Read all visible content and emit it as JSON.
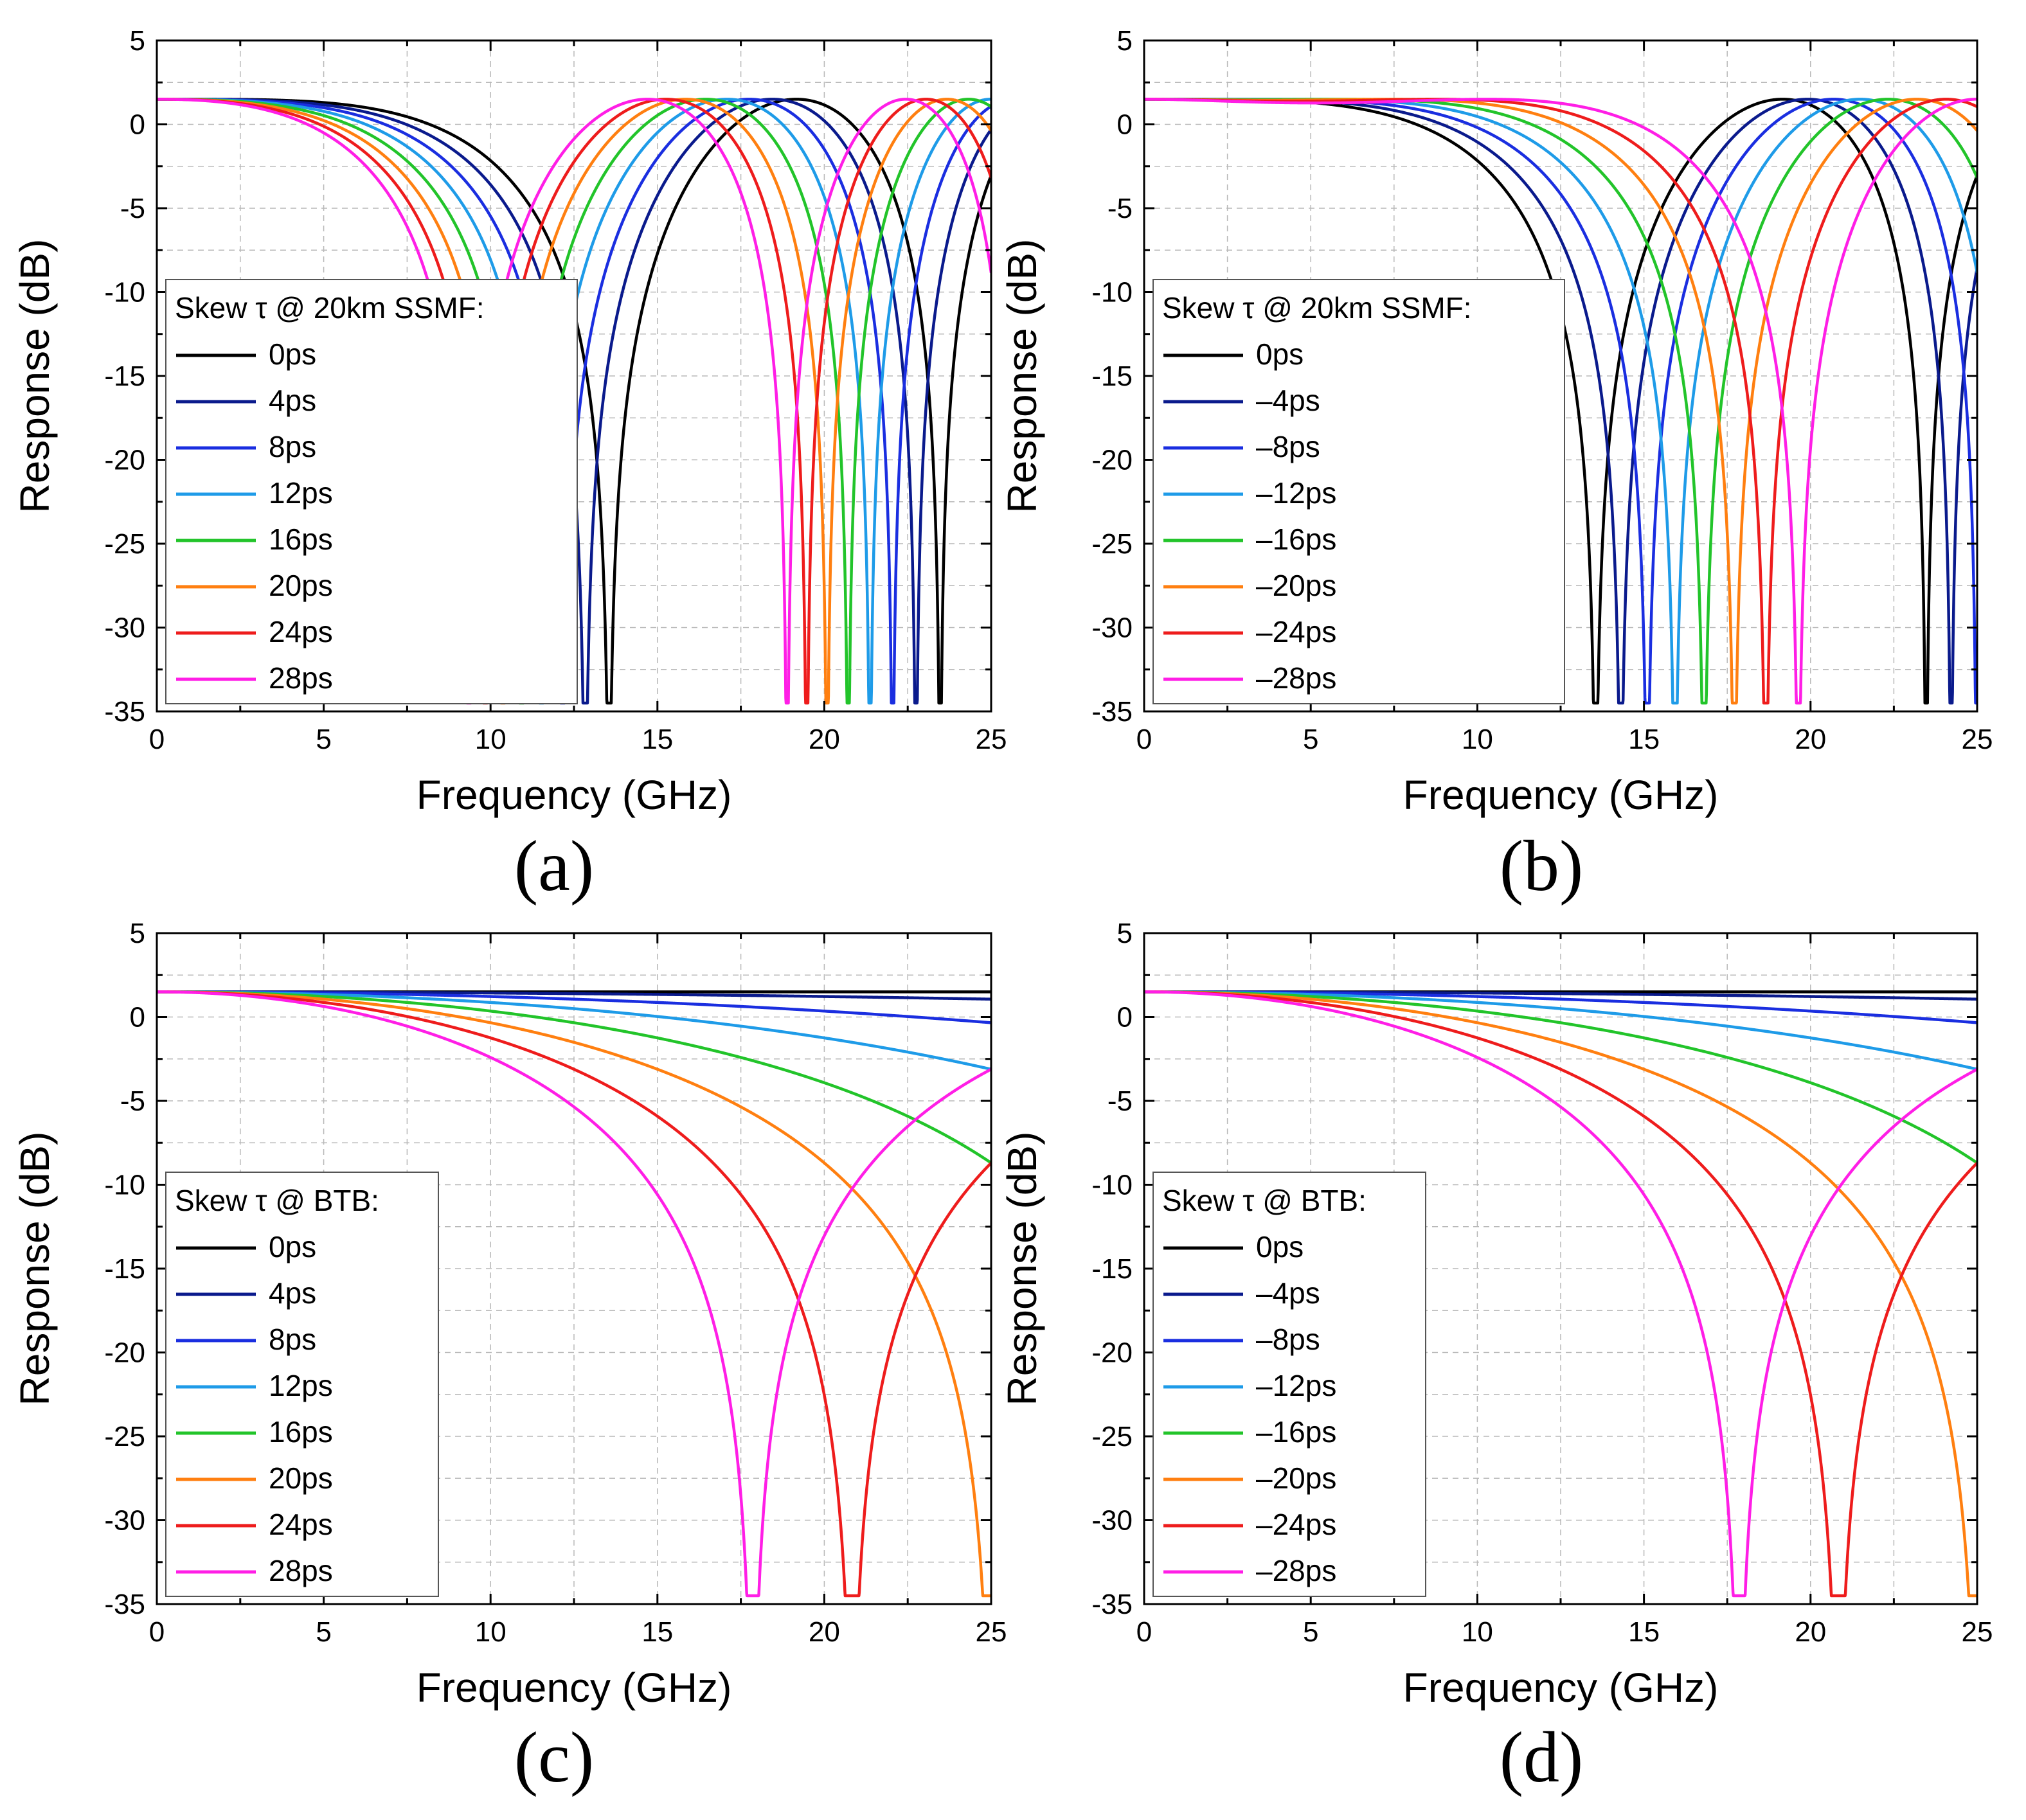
{
  "figure": {
    "panels": [
      "(a)",
      "(b)",
      "(c)",
      "(d)"
    ]
  },
  "chart_data": [
    {
      "type": "line",
      "panel": "(a)",
      "xlabel": "Frequency (GHz)",
      "ylabel": "Response (dB)",
      "xlim": [
        0,
        25
      ],
      "ylim": [
        -35,
        5
      ],
      "xticks": [
        0,
        5,
        10,
        15,
        20,
        25
      ],
      "yticks": [
        5,
        0,
        -5,
        -10,
        -15,
        -20,
        -25,
        -30,
        -35
      ],
      "grid": true,
      "legend_title": "Skew τ @ 20km SSMF:",
      "legend_position": "bottom-left",
      "model": {
        "fiber_length_km": 20,
        "skew_sign": 1
      },
      "series": [
        {
          "name": "0ps",
          "skew_ps": 0,
          "color": "#000000"
        },
        {
          "name": "4ps",
          "skew_ps": 4,
          "color": "#0a1a8c"
        },
        {
          "name": "8ps",
          "skew_ps": 8,
          "color": "#1a2ee0"
        },
        {
          "name": "12ps",
          "skew_ps": 12,
          "color": "#1e9be8"
        },
        {
          "name": "16ps",
          "skew_ps": 16,
          "color": "#22c42a"
        },
        {
          "name": "20ps",
          "skew_ps": 20,
          "color": "#ff7f10"
        },
        {
          "name": "24ps",
          "skew_ps": 24,
          "color": "#ee1c1c"
        },
        {
          "name": "28ps",
          "skew_ps": 28,
          "color": "#ff1ee6"
        }
      ]
    },
    {
      "type": "line",
      "panel": "(b)",
      "xlabel": "Frequency (GHz)",
      "ylabel": "Response (dB)",
      "xlim": [
        0,
        25
      ],
      "ylim": [
        -35,
        5
      ],
      "xticks": [
        0,
        5,
        10,
        15,
        20,
        25
      ],
      "yticks": [
        5,
        0,
        -5,
        -10,
        -15,
        -20,
        -25,
        -30,
        -35
      ],
      "grid": true,
      "legend_title": "Skew τ @ 20km SSMF:",
      "legend_position": "bottom-left",
      "model": {
        "fiber_length_km": 20,
        "skew_sign": -1
      },
      "series": [
        {
          "name": "0ps",
          "skew_ps": 0,
          "color": "#000000"
        },
        {
          "name": "–4ps",
          "skew_ps": -4,
          "color": "#0a1a8c"
        },
        {
          "name": "–8ps",
          "skew_ps": -8,
          "color": "#1a2ee0"
        },
        {
          "name": "–12ps",
          "skew_ps": -12,
          "color": "#1e9be8"
        },
        {
          "name": "–16ps",
          "skew_ps": -16,
          "color": "#22c42a"
        },
        {
          "name": "–20ps",
          "skew_ps": -20,
          "color": "#ff7f10"
        },
        {
          "name": "–24ps",
          "skew_ps": -24,
          "color": "#ee1c1c"
        },
        {
          "name": "–28ps",
          "skew_ps": -28,
          "color": "#ff1ee6"
        }
      ]
    },
    {
      "type": "line",
      "panel": "(c)",
      "xlabel": "Frequency (GHz)",
      "ylabel": "Response (dB)",
      "xlim": [
        0,
        25
      ],
      "ylim": [
        -35,
        5
      ],
      "xticks": [
        0,
        5,
        10,
        15,
        20,
        25
      ],
      "yticks": [
        5,
        0,
        -5,
        -10,
        -15,
        -20,
        -25,
        -30,
        -35
      ],
      "grid": true,
      "legend_title": "Skew τ @ BTB:",
      "legend_position": "bottom-left",
      "model": {
        "fiber_length_km": 0,
        "skew_sign": 1
      },
      "series": [
        {
          "name": "0ps",
          "skew_ps": 0,
          "color": "#000000"
        },
        {
          "name": "4ps",
          "skew_ps": 4,
          "color": "#0a1a8c"
        },
        {
          "name": "8ps",
          "skew_ps": 8,
          "color": "#1a2ee0"
        },
        {
          "name": "12ps",
          "skew_ps": 12,
          "color": "#1e9be8"
        },
        {
          "name": "16ps",
          "skew_ps": 16,
          "color": "#22c42a"
        },
        {
          "name": "20ps",
          "skew_ps": 20,
          "color": "#ff7f10"
        },
        {
          "name": "24ps",
          "skew_ps": 24,
          "color": "#ee1c1c"
        },
        {
          "name": "28ps",
          "skew_ps": 28,
          "color": "#ff1ee6"
        }
      ]
    },
    {
      "type": "line",
      "panel": "(d)",
      "xlabel": "Frequency (GHz)",
      "ylabel": "Response (dB)",
      "xlim": [
        0,
        25
      ],
      "ylim": [
        -35,
        5
      ],
      "xticks": [
        0,
        5,
        10,
        15,
        20,
        25
      ],
      "yticks": [
        5,
        0,
        -5,
        -10,
        -15,
        -20,
        -25,
        -30,
        -35
      ],
      "grid": true,
      "legend_title": "Skew τ @ BTB:",
      "legend_position": "bottom-left",
      "model": {
        "fiber_length_km": 0,
        "skew_sign": -1
      },
      "series": [
        {
          "name": "0ps",
          "skew_ps": 0,
          "color": "#000000"
        },
        {
          "name": "–4ps",
          "skew_ps": -4,
          "color": "#0a1a8c"
        },
        {
          "name": "–8ps",
          "skew_ps": -8,
          "color": "#1a2ee0"
        },
        {
          "name": "–12ps",
          "skew_ps": -12,
          "color": "#1e9be8"
        },
        {
          "name": "–16ps",
          "skew_ps": -16,
          "color": "#22c42a"
        },
        {
          "name": "–20ps",
          "skew_ps": -20,
          "color": "#ff7f10"
        },
        {
          "name": "–24ps",
          "skew_ps": -24,
          "color": "#ee1c1c"
        },
        {
          "name": "–28ps",
          "skew_ps": -28,
          "color": "#ff1ee6"
        }
      ]
    }
  ]
}
